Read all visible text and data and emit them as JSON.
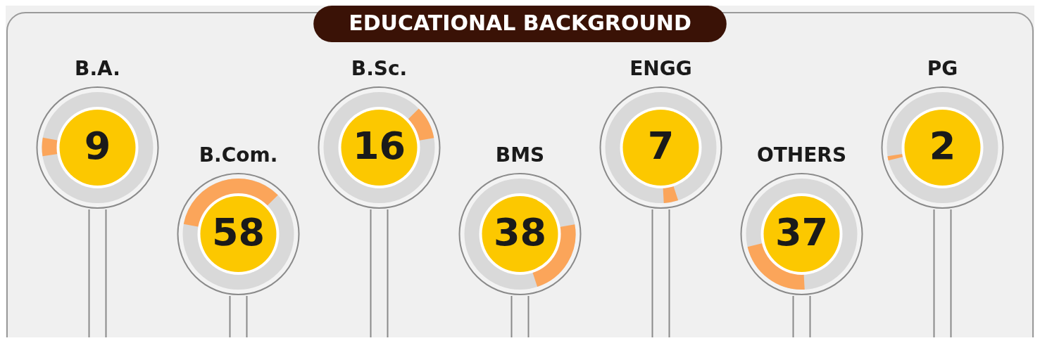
{
  "chart_data": {
    "type": "other",
    "title": "EDUCATIONAL BACKGROUND",
    "categories": [
      "B.A.",
      "B.Com.",
      "B.Sc.",
      "BMS",
      "ENGG",
      "OTHERS",
      "PG"
    ],
    "values": [
      9,
      58,
      16,
      38,
      7,
      37,
      2
    ],
    "color": "#fcc800",
    "data_labels": true
  }
}
